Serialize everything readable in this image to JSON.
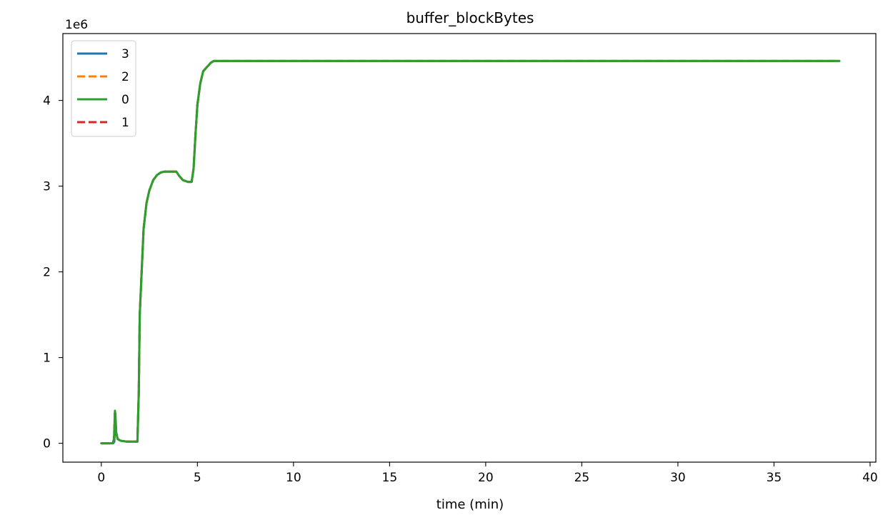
{
  "chart_data": {
    "type": "line",
    "title": "buffer_blockBytes",
    "xlabel": "time (min)",
    "ylabel": "",
    "y_scale_label": "1e6",
    "xlim": [
      -2,
      40.3
    ],
    "ylim": [
      -0.22,
      4.78
    ],
    "x_ticks": [
      0,
      5,
      10,
      15,
      20,
      25,
      30,
      35,
      40
    ],
    "x_tick_labels": [
      "0",
      "5",
      "10",
      "15",
      "20",
      "25",
      "30",
      "35",
      "40"
    ],
    "y_ticks": [
      0,
      1,
      2,
      3,
      4
    ],
    "y_tick_labels": [
      "0",
      "1",
      "2",
      "3",
      "4"
    ],
    "grid": false,
    "legend_position": "top-left",
    "series": [
      {
        "name": "3",
        "color": "#1f77b4",
        "style": "solid",
        "x": [
          0,
          0.62,
          0.68,
          0.73,
          0.78,
          0.85,
          1.0,
          1.3,
          1.7,
          1.88,
          1.95,
          2.0,
          2.1,
          2.2,
          2.35,
          2.5,
          2.7,
          2.9,
          3.1,
          3.3,
          3.6,
          3.9,
          4.05,
          4.25,
          4.5,
          4.7,
          4.8,
          4.9,
          5.0,
          5.15,
          5.3,
          5.5,
          5.7,
          5.85,
          6.0,
          38.4
        ],
        "values": [
          0,
          0,
          0.02,
          0.35,
          0.12,
          0.05,
          0.03,
          0.02,
          0.02,
          0.02,
          0.6,
          1.5,
          2.0,
          2.5,
          2.8,
          2.95,
          3.07,
          3.13,
          3.16,
          3.17,
          3.17,
          3.17,
          3.12,
          3.07,
          3.05,
          3.05,
          3.2,
          3.6,
          3.95,
          4.2,
          4.34,
          4.39,
          4.44,
          4.46,
          4.46,
          4.46
        ]
      },
      {
        "name": "2",
        "color": "#ff7f0e",
        "style": "dashed",
        "x": [
          0,
          0.6,
          0.66,
          0.71,
          0.77,
          0.85,
          1.0,
          1.3,
          1.7,
          1.88,
          1.95,
          2.0,
          2.1,
          2.2,
          2.35,
          2.5,
          2.7,
          2.9,
          3.1,
          3.3,
          3.6,
          3.9,
          4.05,
          4.25,
          4.5,
          4.7,
          4.8,
          4.9,
          5.0,
          5.15,
          5.3,
          5.5,
          5.7,
          5.85,
          6.0,
          38.4
        ],
        "values": [
          0,
          0,
          0.05,
          0.38,
          0.13,
          0.05,
          0.03,
          0.02,
          0.02,
          0.02,
          0.6,
          1.5,
          2.0,
          2.5,
          2.8,
          2.95,
          3.07,
          3.13,
          3.16,
          3.17,
          3.17,
          3.17,
          3.12,
          3.07,
          3.05,
          3.05,
          3.2,
          3.6,
          3.95,
          4.2,
          4.34,
          4.39,
          4.44,
          4.46,
          4.46,
          4.46
        ]
      },
      {
        "name": "0",
        "color": "#2ca02c",
        "style": "solid",
        "x": [
          0,
          0.6,
          0.66,
          0.71,
          0.77,
          0.85,
          1.0,
          1.3,
          1.7,
          1.88,
          1.95,
          2.0,
          2.1,
          2.2,
          2.35,
          2.5,
          2.7,
          2.9,
          3.1,
          3.3,
          3.6,
          3.9,
          4.05,
          4.25,
          4.5,
          4.7,
          4.8,
          4.9,
          5.0,
          5.15,
          5.3,
          5.5,
          5.7,
          5.85,
          6.0,
          38.4
        ],
        "values": [
          0,
          0,
          0.05,
          0.38,
          0.13,
          0.05,
          0.03,
          0.02,
          0.02,
          0.02,
          0.6,
          1.5,
          2.0,
          2.5,
          2.8,
          2.95,
          3.07,
          3.13,
          3.16,
          3.17,
          3.17,
          3.17,
          3.12,
          3.07,
          3.05,
          3.05,
          3.2,
          3.6,
          3.95,
          4.2,
          4.34,
          4.39,
          4.44,
          4.46,
          4.46,
          4.46
        ]
      },
      {
        "name": "1",
        "color": "#d62728",
        "style": "dashed",
        "x": [
          0,
          0.6,
          0.66,
          0.71,
          0.77,
          0.85,
          1.0,
          1.3,
          1.7,
          1.88,
          1.95,
          2.0,
          2.1,
          2.2,
          2.35,
          2.5,
          2.7,
          2.9,
          3.1,
          3.3,
          3.6,
          3.9,
          4.05,
          4.25,
          4.5,
          4.7,
          4.8,
          4.9,
          5.0,
          5.15,
          5.3,
          5.5,
          5.7,
          5.85,
          6.0,
          38.4
        ],
        "values": [
          0,
          0,
          0.05,
          0.39,
          0.13,
          0.05,
          0.03,
          0.02,
          0.02,
          0.02,
          0.6,
          1.5,
          2.0,
          2.5,
          2.8,
          2.95,
          3.07,
          3.13,
          3.16,
          3.17,
          3.17,
          3.17,
          3.12,
          3.07,
          3.05,
          3.05,
          3.2,
          3.6,
          3.95,
          4.2,
          4.34,
          4.39,
          4.44,
          4.46,
          4.46,
          4.46
        ]
      }
    ],
    "plot_draw_order": [
      "3",
      "2",
      "1",
      "0"
    ]
  }
}
